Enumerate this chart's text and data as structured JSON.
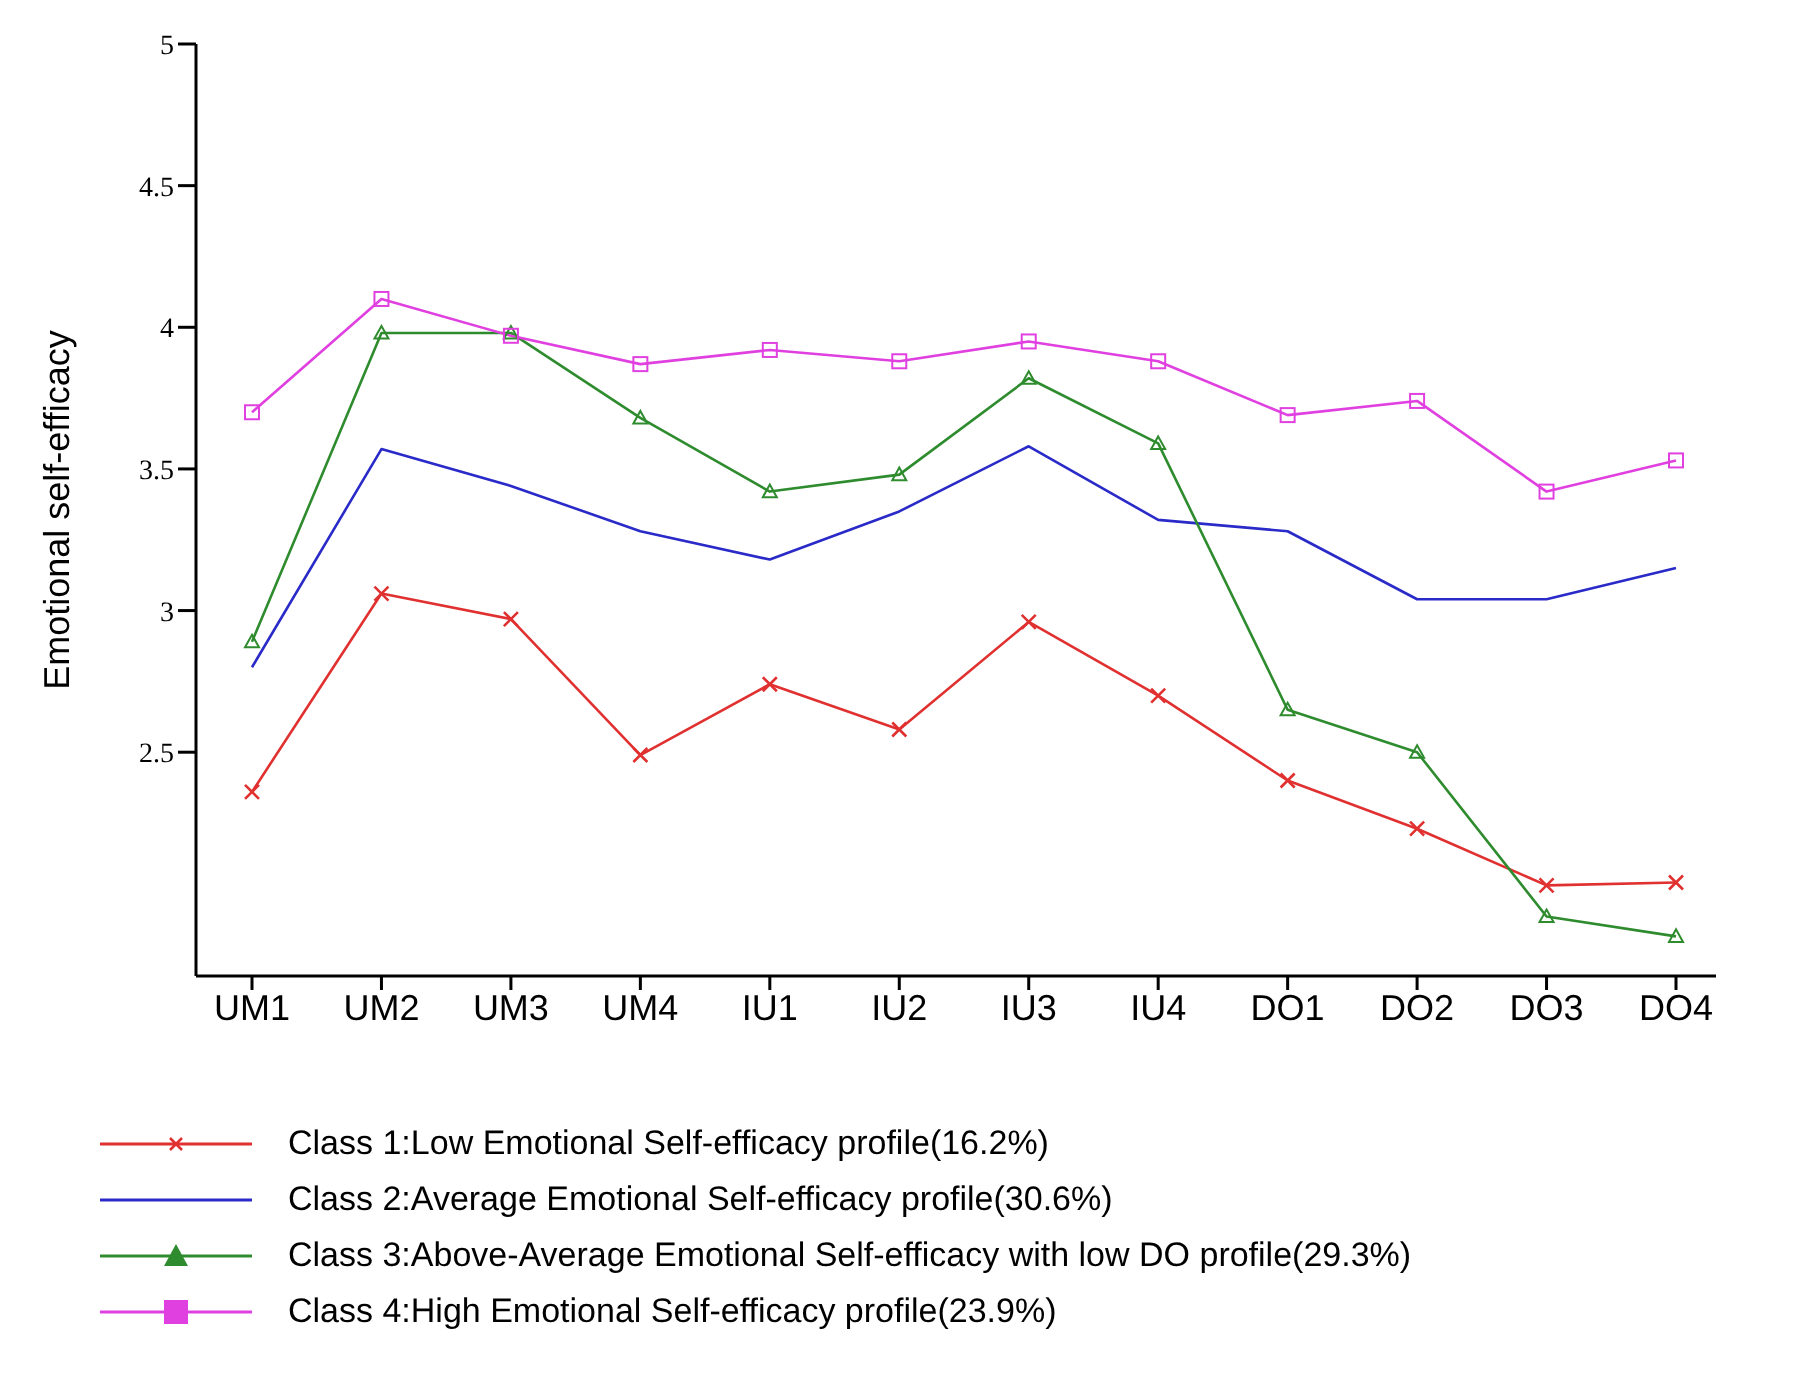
{
  "chart_data": {
    "type": "line",
    "ylabel": "Emotional self-efficacy",
    "categories": [
      "UM1",
      "UM2",
      "UM3",
      "UM4",
      "IU1",
      "IU2",
      "IU3",
      "IU4",
      "DO1",
      "DO2",
      "DO3",
      "DO4"
    ],
    "series": [
      {
        "name": "Class 1:Low Emotional Self-efficacy profile(16.2%)",
        "color": "#e03030",
        "marker": "cross",
        "values": [
          2.36,
          3.06,
          2.97,
          2.49,
          2.74,
          2.58,
          2.96,
          2.7,
          2.4,
          2.23,
          2.03,
          2.04
        ]
      },
      {
        "name": "Class 2:Average Emotional Self-efficacy profile(30.6%)",
        "color": "#2a2ac8",
        "marker": "none",
        "values": [
          2.8,
          3.57,
          3.44,
          3.28,
          3.18,
          3.35,
          3.58,
          3.32,
          3.28,
          3.04,
          3.04,
          3.15
        ]
      },
      {
        "name": "Class 3:Above-Average Emotional Self-efficacy with low DO profile(29.3%)",
        "color": "#2e8b2e",
        "marker": "triangle",
        "values": [
          2.89,
          3.98,
          3.98,
          3.68,
          3.42,
          3.48,
          3.82,
          3.59,
          2.65,
          2.5,
          1.92,
          1.85
        ]
      },
      {
        "name": "Class 4:High Emotional Self-efficacy profile(23.9%)",
        "color": "#e040e0",
        "marker": "square",
        "values": [
          3.7,
          4.1,
          3.97,
          3.87,
          3.92,
          3.88,
          3.95,
          3.88,
          3.69,
          3.74,
          3.42,
          3.53
        ]
      }
    ],
    "ylim": [
      1.71,
      5
    ],
    "yticks": [
      2.5,
      3,
      3.5,
      4,
      4.5,
      5
    ],
    "legend": "bottom",
    "line_style": "solid"
  }
}
